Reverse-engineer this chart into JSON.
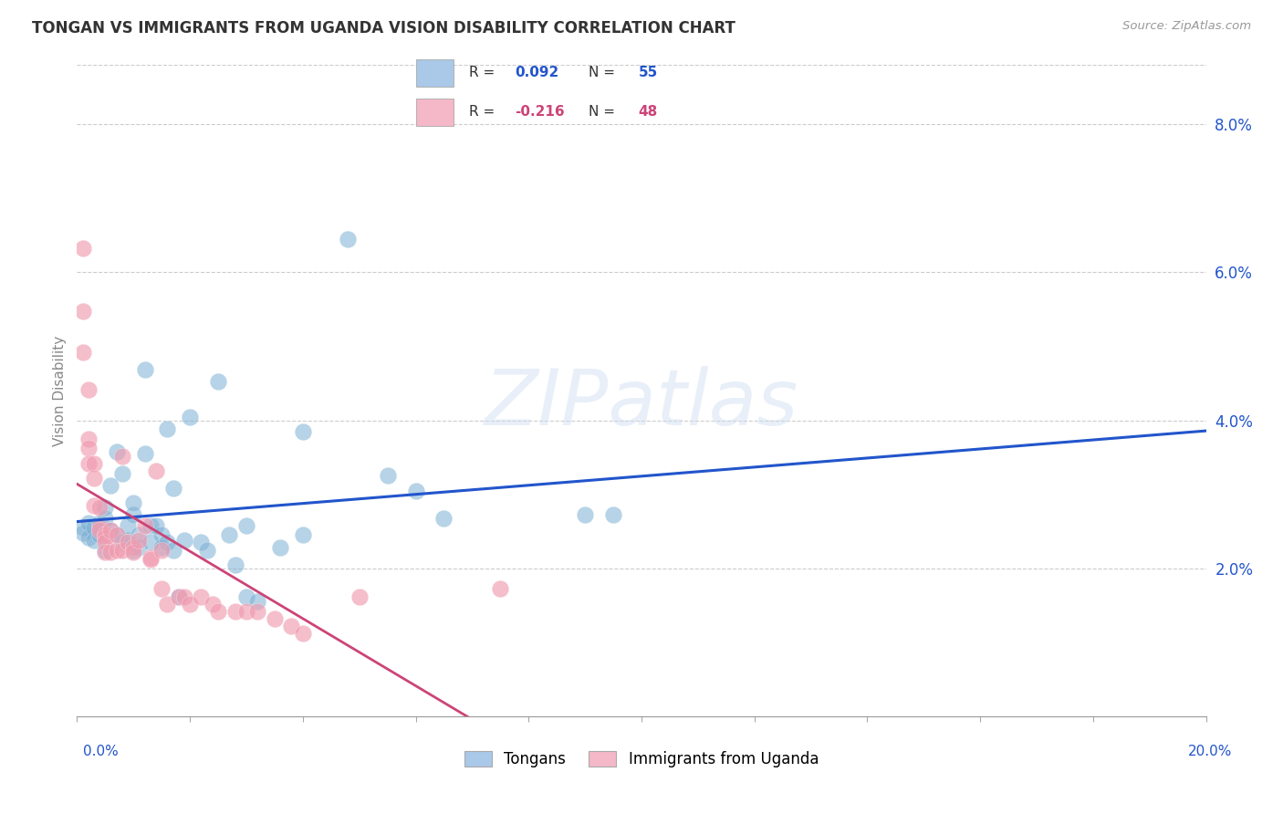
{
  "title": "TONGAN VS IMMIGRANTS FROM UGANDA VISION DISABILITY CORRELATION CHART",
  "source": "Source: ZipAtlas.com",
  "ylabel": "Vision Disability",
  "y_ticks": [
    0.0,
    0.02,
    0.04,
    0.06,
    0.08
  ],
  "y_tick_labels": [
    "",
    "2.0%",
    "4.0%",
    "6.0%",
    "8.0%"
  ],
  "x_min": 0.0,
  "x_max": 0.2,
  "y_min": 0.0,
  "y_max": 0.088,
  "tongans_color": "#7bafd4",
  "uganda_color": "#f09cb0",
  "tongans_fill": "#aac8e8",
  "uganda_fill": "#f4b8c8",
  "trendline_tongans_color": "#2255cc",
  "trendline_uganda_color": "#cc4477",
  "watermark_text": "ZIPatlas",
  "tongans_scatter": [
    [
      0.001,
      0.0255
    ],
    [
      0.001,
      0.0248
    ],
    [
      0.002,
      0.0261
    ],
    [
      0.002,
      0.0242
    ],
    [
      0.003,
      0.0255
    ],
    [
      0.003,
      0.0238
    ],
    [
      0.004,
      0.0245
    ],
    [
      0.004,
      0.0262
    ],
    [
      0.005,
      0.0268
    ],
    [
      0.005,
      0.0225
    ],
    [
      0.005,
      0.0282
    ],
    [
      0.006,
      0.0312
    ],
    [
      0.006,
      0.0252
    ],
    [
      0.007,
      0.0245
    ],
    [
      0.007,
      0.0358
    ],
    [
      0.008,
      0.0328
    ],
    [
      0.008,
      0.0235
    ],
    [
      0.009,
      0.0238
    ],
    [
      0.009,
      0.0258
    ],
    [
      0.01,
      0.0272
    ],
    [
      0.01,
      0.0225
    ],
    [
      0.01,
      0.0288
    ],
    [
      0.011,
      0.0228
    ],
    [
      0.011,
      0.0245
    ],
    [
      0.012,
      0.0468
    ],
    [
      0.012,
      0.0355
    ],
    [
      0.013,
      0.0258
    ],
    [
      0.013,
      0.0235
    ],
    [
      0.014,
      0.0258
    ],
    [
      0.015,
      0.0245
    ],
    [
      0.015,
      0.0228
    ],
    [
      0.016,
      0.0235
    ],
    [
      0.016,
      0.0388
    ],
    [
      0.017,
      0.0225
    ],
    [
      0.017,
      0.0308
    ],
    [
      0.018,
      0.0162
    ],
    [
      0.019,
      0.0238
    ],
    [
      0.02,
      0.0405
    ],
    [
      0.022,
      0.0235
    ],
    [
      0.023,
      0.0225
    ],
    [
      0.025,
      0.0452
    ],
    [
      0.027,
      0.0245
    ],
    [
      0.028,
      0.0205
    ],
    [
      0.03,
      0.0258
    ],
    [
      0.03,
      0.0162
    ],
    [
      0.032,
      0.0155
    ],
    [
      0.036,
      0.0228
    ],
    [
      0.04,
      0.0245
    ],
    [
      0.04,
      0.0385
    ],
    [
      0.048,
      0.0645
    ],
    [
      0.055,
      0.0325
    ],
    [
      0.06,
      0.0305
    ],
    [
      0.065,
      0.0268
    ],
    [
      0.09,
      0.0272
    ],
    [
      0.095,
      0.0272
    ]
  ],
  "uganda_scatter": [
    [
      0.001,
      0.0632
    ],
    [
      0.001,
      0.0548
    ],
    [
      0.001,
      0.0492
    ],
    [
      0.002,
      0.0442
    ],
    [
      0.002,
      0.0375
    ],
    [
      0.002,
      0.0362
    ],
    [
      0.002,
      0.0342
    ],
    [
      0.003,
      0.0342
    ],
    [
      0.003,
      0.0322
    ],
    [
      0.003,
      0.0285
    ],
    [
      0.004,
      0.0282
    ],
    [
      0.004,
      0.0255
    ],
    [
      0.004,
      0.0252
    ],
    [
      0.005,
      0.0245
    ],
    [
      0.005,
      0.0242
    ],
    [
      0.005,
      0.0235
    ],
    [
      0.005,
      0.0222
    ],
    [
      0.006,
      0.0252
    ],
    [
      0.006,
      0.0222
    ],
    [
      0.007,
      0.0225
    ],
    [
      0.007,
      0.0245
    ],
    [
      0.008,
      0.0352
    ],
    [
      0.008,
      0.0225
    ],
    [
      0.009,
      0.0235
    ],
    [
      0.01,
      0.0228
    ],
    [
      0.01,
      0.0222
    ],
    [
      0.011,
      0.0238
    ],
    [
      0.012,
      0.0258
    ],
    [
      0.013,
      0.0215
    ],
    [
      0.013,
      0.0212
    ],
    [
      0.014,
      0.0332
    ],
    [
      0.015,
      0.0225
    ],
    [
      0.015,
      0.0172
    ],
    [
      0.016,
      0.0152
    ],
    [
      0.018,
      0.0162
    ],
    [
      0.019,
      0.0162
    ],
    [
      0.02,
      0.0152
    ],
    [
      0.022,
      0.0162
    ],
    [
      0.024,
      0.0152
    ],
    [
      0.025,
      0.0142
    ],
    [
      0.028,
      0.0142
    ],
    [
      0.03,
      0.0142
    ],
    [
      0.032,
      0.0142
    ],
    [
      0.035,
      0.0132
    ],
    [
      0.038,
      0.0122
    ],
    [
      0.04,
      0.0112
    ],
    [
      0.05,
      0.0162
    ],
    [
      0.075,
      0.0172
    ]
  ],
  "legend_r1": "R =  0.092",
  "legend_n1": "N = 55",
  "legend_r2": "R = -0.216",
  "legend_n2": "N = 48",
  "legend_text_color": "#2255cc",
  "legend_text_color2": "#cc4477"
}
